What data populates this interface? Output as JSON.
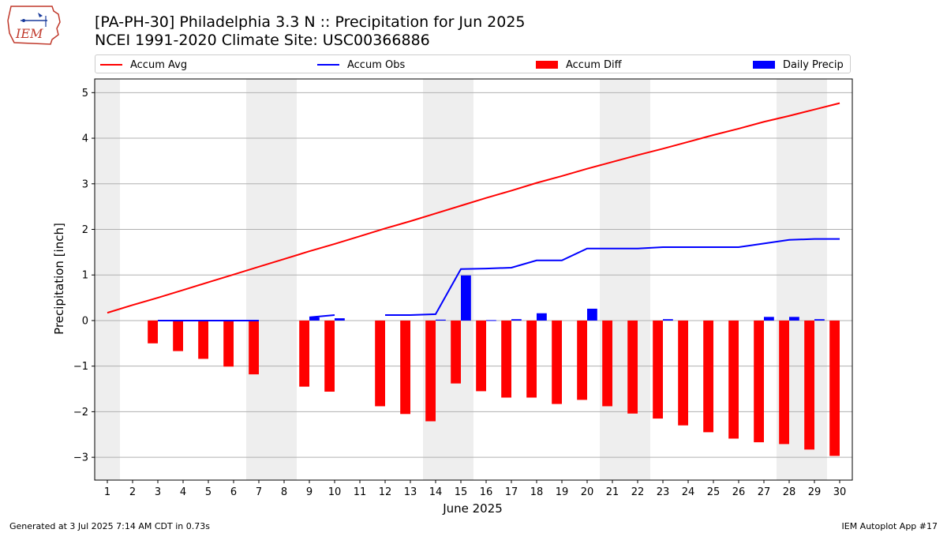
{
  "header": {
    "logo_text": "IEM",
    "title_line1": "[PA-PH-30] Philadelphia 3.3 N :: Precipitation for Jun 2025",
    "title_line2": "NCEI 1991-2020 Climate Site: USC00366886"
  },
  "legend": {
    "items": [
      {
        "label": "Accum Avg",
        "kind": "line",
        "color": "#ff0000"
      },
      {
        "label": "Accum Obs",
        "kind": "line",
        "color": "#0000ff"
      },
      {
        "label": "Accum Diff",
        "kind": "bar",
        "color": "#ff0000"
      },
      {
        "label": "Daily Precip",
        "kind": "bar",
        "color": "#0000ff"
      }
    ]
  },
  "footer": {
    "left": "Generated at 3 Jul 2025 7:14 AM CDT in 0.73s",
    "right": "IEM Autoplot App #17"
  },
  "chart_data": {
    "type": "bar",
    "xlabel": "June 2025",
    "ylabel": "Precipitation [inch]",
    "xlim": [
      0.5,
      30.5
    ],
    "ylim": [
      -3.5,
      5.3
    ],
    "yticks": [
      -3,
      -2,
      -1,
      0,
      1,
      2,
      3,
      4,
      5
    ],
    "ytick_labels": [
      "−3",
      "−2",
      "−1",
      "0",
      "1",
      "2",
      "3",
      "4",
      "5"
    ],
    "xticks": [
      1,
      2,
      3,
      4,
      5,
      6,
      7,
      8,
      9,
      10,
      11,
      12,
      13,
      14,
      15,
      16,
      17,
      18,
      19,
      20,
      21,
      22,
      23,
      24,
      25,
      26,
      27,
      28,
      29,
      30
    ],
    "grid": "horizontal",
    "weekend_bands": [
      [
        0.5,
        1.5
      ],
      [
        6.5,
        8.5
      ],
      [
        13.5,
        15.5
      ],
      [
        20.5,
        22.5
      ],
      [
        27.5,
        29.5
      ]
    ],
    "accum_avg": {
      "name": "Accum Avg",
      "color": "#ff0000",
      "x": [
        1,
        2,
        3,
        4,
        5,
        6,
        7,
        8,
        9,
        10,
        11,
        12,
        13,
        14,
        15,
        16,
        17,
        18,
        19,
        20,
        21,
        22,
        23,
        24,
        25,
        26,
        27,
        28,
        29,
        30
      ],
      "y": [
        0.17,
        0.34,
        0.5,
        0.67,
        0.84,
        1.01,
        1.18,
        1.35,
        1.52,
        1.68,
        1.85,
        2.02,
        2.18,
        2.35,
        2.52,
        2.69,
        2.85,
        3.02,
        3.17,
        3.33,
        3.48,
        3.63,
        3.77,
        3.92,
        4.07,
        4.21,
        4.36,
        4.49,
        4.63,
        4.77
      ]
    },
    "accum_obs": {
      "name": "Accum Obs",
      "color": "#0000ff",
      "segments": [
        {
          "x": [
            3,
            4,
            5,
            6,
            7
          ],
          "y": [
            0.0,
            0.0,
            0.0,
            0.0,
            0.0
          ]
        },
        {
          "x": [
            9,
            10
          ],
          "y": [
            0.07,
            0.12
          ]
        },
        {
          "x": [
            12,
            13,
            14,
            15,
            16,
            17,
            18,
            19,
            20,
            21,
            22,
            23,
            24,
            25,
            26,
            27,
            28,
            29,
            30
          ],
          "y": [
            0.12,
            0.12,
            0.14,
            1.13,
            1.14,
            1.16,
            1.32,
            1.32,
            1.58,
            1.58,
            1.58,
            1.61,
            1.61,
            1.61,
            1.61,
            1.69,
            1.77,
            1.79,
            1.79
          ]
        }
      ]
    },
    "accum_diff": {
      "name": "Accum Diff",
      "color": "#ff0000",
      "x": [
        3,
        4,
        5,
        6,
        7,
        9,
        10,
        12,
        13,
        14,
        15,
        16,
        17,
        18,
        19,
        20,
        21,
        22,
        23,
        24,
        25,
        26,
        27,
        28,
        29,
        30
      ],
      "y": [
        -0.5,
        -0.67,
        -0.84,
        -1.01,
        -1.18,
        -1.45,
        -1.56,
        -1.88,
        -2.05,
        -2.21,
        -1.38,
        -1.55,
        -1.69,
        -1.69,
        -1.83,
        -1.74,
        -1.88,
        -2.04,
        -2.15,
        -2.3,
        -2.45,
        -2.59,
        -2.67,
        -2.71,
        -2.83,
        -2.97
      ]
    },
    "daily_precip": {
      "name": "Daily Precip",
      "color": "#0000ff",
      "x": [
        3,
        4,
        5,
        6,
        7,
        9,
        10,
        12,
        13,
        14,
        15,
        16,
        17,
        18,
        19,
        20,
        21,
        22,
        23,
        24,
        25,
        26,
        27,
        28,
        29,
        30
      ],
      "y": [
        0.0,
        0.0,
        0.0,
        0.0,
        0.0,
        0.07,
        0.05,
        0.0,
        0.0,
        0.02,
        0.99,
        0.01,
        0.03,
        0.16,
        0.0,
        0.26,
        0.0,
        0.0,
        0.03,
        0.0,
        0.0,
        0.0,
        0.08,
        0.08,
        0.03,
        0.0
      ]
    }
  }
}
